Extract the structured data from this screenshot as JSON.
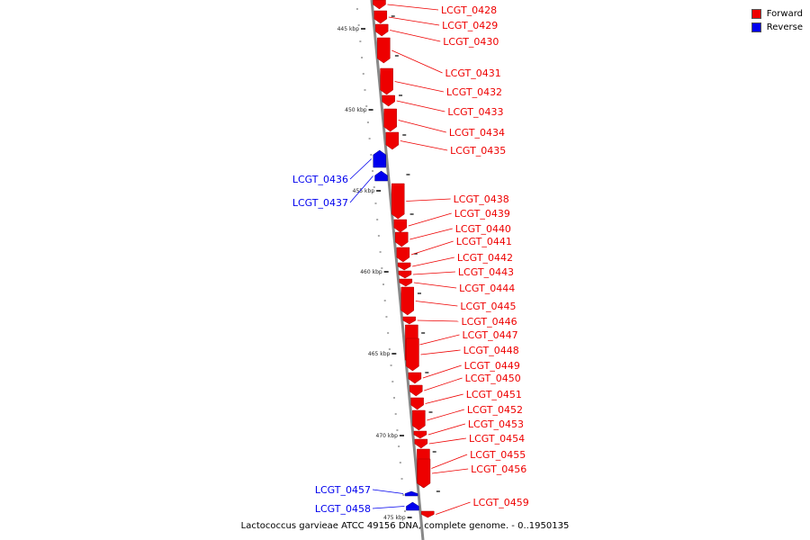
{
  "legend": {
    "forward_label": "Forward",
    "reverse_label": "Reverse",
    "forward_color": "#ee0000",
    "reverse_color": "#0000ee"
  },
  "caption": "Lactococcus garvieae ATCC 49156 DNA, complete genome. - 0..1950135",
  "scale_labels": [
    "445 kbp",
    "450 kbp",
    "455 kbp",
    "460 kbp",
    "465 kbp",
    "470 kbp",
    "475 kbp"
  ],
  "genes": [
    {
      "name": "LCGT_0428",
      "strand": "forward"
    },
    {
      "name": "LCGT_0429",
      "strand": "forward"
    },
    {
      "name": "LCGT_0430",
      "strand": "forward"
    },
    {
      "name": "LCGT_0431",
      "strand": "forward"
    },
    {
      "name": "LCGT_0432",
      "strand": "forward"
    },
    {
      "name": "LCGT_0433",
      "strand": "forward"
    },
    {
      "name": "LCGT_0434",
      "strand": "forward"
    },
    {
      "name": "LCGT_0435",
      "strand": "forward"
    },
    {
      "name": "LCGT_0436",
      "strand": "reverse"
    },
    {
      "name": "LCGT_0437",
      "strand": "reverse"
    },
    {
      "name": "LCGT_0438",
      "strand": "forward"
    },
    {
      "name": "LCGT_0439",
      "strand": "forward"
    },
    {
      "name": "LCGT_0440",
      "strand": "forward"
    },
    {
      "name": "LCGT_0441",
      "strand": "forward"
    },
    {
      "name": "LCGT_0442",
      "strand": "forward"
    },
    {
      "name": "LCGT_0443",
      "strand": "forward"
    },
    {
      "name": "LCGT_0444",
      "strand": "forward"
    },
    {
      "name": "LCGT_0445",
      "strand": "forward"
    },
    {
      "name": "LCGT_0446",
      "strand": "forward"
    },
    {
      "name": "LCGT_0447",
      "strand": "forward"
    },
    {
      "name": "LCGT_0448",
      "strand": "forward"
    },
    {
      "name": "LCGT_0449",
      "strand": "forward"
    },
    {
      "name": "LCGT_0450",
      "strand": "forward"
    },
    {
      "name": "LCGT_0451",
      "strand": "forward"
    },
    {
      "name": "LCGT_0452",
      "strand": "forward"
    },
    {
      "name": "LCGT_0453",
      "strand": "forward"
    },
    {
      "name": "LCGT_0454",
      "strand": "forward"
    },
    {
      "name": "LCGT_0455",
      "strand": "forward"
    },
    {
      "name": "LCGT_0456",
      "strand": "forward"
    },
    {
      "name": "LCGT_0457",
      "strand": "reverse"
    },
    {
      "name": "LCGT_0458",
      "strand": "reverse"
    },
    {
      "name": "LCGT_0459",
      "strand": "forward"
    }
  ]
}
